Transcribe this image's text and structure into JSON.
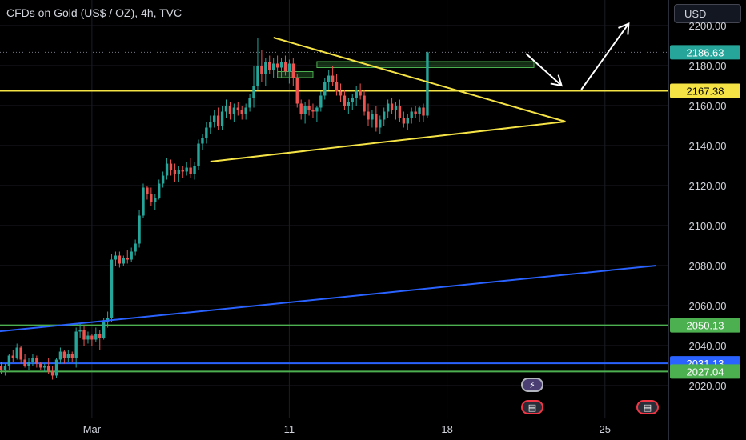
{
  "header": {
    "title": "CFDs on Gold (US$ / OZ), 4h, TVC",
    "currency": "USD"
  },
  "events": {
    "bolt_icon": "lightning-icon",
    "flag_icon": "us-flag-icon"
  },
  "colors": {
    "up": "#26a69a",
    "down": "#ef5350",
    "yellow": "#f5e346",
    "blue": "#2962ff",
    "green": "#4caf50",
    "grid": "#1b1d24",
    "axis_text": "#d1d4dc"
  },
  "chart_data": {
    "type": "candlestick",
    "title": "CFDs on Gold (US$ / OZ), 4h, TVC",
    "ylim": [
      2012,
      2212
    ],
    "y_ticks": [
      2020,
      2040,
      2060,
      2080,
      2100,
      2120,
      2140,
      2160,
      2180,
      2200
    ],
    "y_tick_labels": [
      "2020.00",
      "2040.00",
      "2060.00",
      "2080.00",
      "2100.00",
      "2120.00",
      "2140.00",
      "2160.00",
      "2180.00",
      "2200.00"
    ],
    "x_ticks": [
      {
        "bar": 23,
        "label": "Mar"
      },
      {
        "bar": 73,
        "label": "11"
      },
      {
        "bar": 113,
        "label": "18"
      },
      {
        "bar": 153,
        "label": "25"
      }
    ],
    "price_labels": [
      {
        "value": 2186.63,
        "label": "2186.63",
        "color": "#26a69a"
      },
      {
        "value": 2167.38,
        "label": "2167.38",
        "color": "#f5e346"
      },
      {
        "value": 2050.13,
        "label": "2050.13",
        "color": "#4caf50"
      },
      {
        "value": 2031.13,
        "label": "2031.13",
        "color": "#2962ff"
      },
      {
        "value": 2027.04,
        "label": "2027.04",
        "color": "#4caf50"
      }
    ],
    "horizontal_lines": [
      {
        "value": 2167.38,
        "color": "#f5e346"
      },
      {
        "value": 2050.13,
        "color": "#4caf50"
      },
      {
        "value": 2031.13,
        "color": "#2962ff"
      },
      {
        "value": 2027.04,
        "color": "#4caf50"
      }
    ],
    "trend_lines": [
      {
        "from": {
          "bar": 69,
          "price": 2194
        },
        "to": {
          "bar": 143,
          "price": 2152
        },
        "color": "#f5e346"
      },
      {
        "from": {
          "bar": 53,
          "price": 2132
        },
        "to": {
          "bar": 143,
          "price": 2152
        },
        "color": "#f5e346"
      },
      {
        "from": {
          "bar": -1,
          "price": 2047
        },
        "to": {
          "bar": 166,
          "price": 2080
        },
        "color": "#2962ff"
      }
    ],
    "boxes": [
      {
        "x0_bar": 70,
        "x1_bar": 79,
        "top": 2177,
        "bottom": 2174
      },
      {
        "x0_bar": 80,
        "x1_bar": 135,
        "top": 2182,
        "bottom": 2179
      }
    ],
    "arrows": [
      {
        "points": [
          [
            133,
            2186
          ],
          [
            142,
            2170
          ]
        ],
        "color": "#ffffff"
      },
      {
        "points": [
          [
            147,
            2168
          ],
          [
            159,
            2201
          ]
        ],
        "color": "#ffffff"
      }
    ],
    "candles": [
      [
        2030,
        2032,
        2026,
        2028
      ],
      [
        2028,
        2031,
        2025,
        2030
      ],
      [
        2030,
        2036,
        2028,
        2035
      ],
      [
        2035,
        2038,
        2032,
        2034
      ],
      [
        2034,
        2041,
        2033,
        2039
      ],
      [
        2039,
        2040,
        2031,
        2033
      ],
      [
        2033,
        2036,
        2029,
        2030
      ],
      [
        2030,
        2034,
        2028,
        2032
      ],
      [
        2032,
        2036,
        2030,
        2034
      ],
      [
        2034,
        2035,
        2029,
        2031
      ],
      [
        2031,
        2032,
        2028,
        2029
      ],
      [
        2029,
        2031,
        2027,
        2030
      ],
      [
        2030,
        2034,
        2026,
        2027
      ],
      [
        2027,
        2030,
        2023,
        2025
      ],
      [
        2025,
        2034,
        2024,
        2033
      ],
      [
        2033,
        2039,
        2031,
        2037
      ],
      [
        2037,
        2038,
        2031,
        2034
      ],
      [
        2034,
        2038,
        2032,
        2036
      ],
      [
        2036,
        2037,
        2032,
        2034
      ],
      [
        2034,
        2049,
        2029,
        2047
      ],
      [
        2047,
        2051,
        2044,
        2048
      ],
      [
        2048,
        2050,
        2040,
        2043
      ],
      [
        2043,
        2047,
        2041,
        2045
      ],
      [
        2045,
        2046,
        2040,
        2043
      ],
      [
        2043,
        2049,
        2042,
        2046
      ],
      [
        2046,
        2048,
        2038,
        2044
      ],
      [
        2044,
        2054,
        2043,
        2052
      ],
      [
        2052,
        2057,
        2049,
        2054
      ],
      [
        2054,
        2086,
        2052,
        2083
      ],
      [
        2083,
        2087,
        2080,
        2085
      ],
      [
        2085,
        2087,
        2079,
        2081
      ],
      [
        2081,
        2085,
        2080,
        2084
      ],
      [
        2084,
        2088,
        2081,
        2083
      ],
      [
        2083,
        2089,
        2082,
        2087
      ],
      [
        2087,
        2093,
        2085,
        2091
      ],
      [
        2091,
        2108,
        2089,
        2105
      ],
      [
        2105,
        2121,
        2104,
        2119
      ],
      [
        2119,
        2120,
        2113,
        2116
      ],
      [
        2116,
        2119,
        2110,
        2112
      ],
      [
        2112,
        2116,
        2108,
        2114
      ],
      [
        2114,
        2123,
        2113,
        2121
      ],
      [
        2121,
        2127,
        2119,
        2125
      ],
      [
        2125,
        2134,
        2123,
        2131
      ],
      [
        2131,
        2133,
        2125,
        2128
      ],
      [
        2128,
        2131,
        2122,
        2126
      ],
      [
        2126,
        2130,
        2122,
        2128
      ],
      [
        2128,
        2130,
        2124,
        2127
      ],
      [
        2127,
        2132,
        2125,
        2129
      ],
      [
        2129,
        2134,
        2124,
        2126
      ],
      [
        2126,
        2132,
        2123,
        2130
      ],
      [
        2130,
        2143,
        2128,
        2141
      ],
      [
        2141,
        2146,
        2138,
        2144
      ],
      [
        2144,
        2152,
        2141,
        2149
      ],
      [
        2149,
        2155,
        2146,
        2152
      ],
      [
        2152,
        2158,
        2149,
        2155
      ],
      [
        2155,
        2159,
        2148,
        2150
      ],
      [
        2150,
        2160,
        2148,
        2157
      ],
      [
        2157,
        2163,
        2154,
        2160
      ],
      [
        2160,
        2162,
        2153,
        2156
      ],
      [
        2156,
        2161,
        2152,
        2159
      ],
      [
        2159,
        2162,
        2155,
        2158
      ],
      [
        2158,
        2160,
        2153,
        2156
      ],
      [
        2156,
        2161,
        2153,
        2159
      ],
      [
        2159,
        2166,
        2157,
        2164
      ],
      [
        2164,
        2180,
        2159,
        2170
      ],
      [
        2170,
        2194,
        2168,
        2180
      ],
      [
        2180,
        2188,
        2172,
        2176
      ],
      [
        2176,
        2184,
        2170,
        2182
      ],
      [
        2182,
        2185,
        2176,
        2178
      ],
      [
        2178,
        2184,
        2174,
        2181
      ],
      [
        2181,
        2185,
        2176,
        2179
      ],
      [
        2179,
        2184,
        2174,
        2182
      ],
      [
        2182,
        2185,
        2175,
        2177
      ],
      [
        2177,
        2183,
        2171,
        2181
      ],
      [
        2181,
        2184,
        2170,
        2174
      ],
      [
        2174,
        2176,
        2159,
        2161
      ],
      [
        2161,
        2163,
        2153,
        2156
      ],
      [
        2156,
        2162,
        2151,
        2160
      ],
      [
        2160,
        2163,
        2155,
        2158
      ],
      [
        2158,
        2161,
        2154,
        2157
      ],
      [
        2157,
        2160,
        2152,
        2159
      ],
      [
        2159,
        2167,
        2157,
        2165
      ],
      [
        2165,
        2174,
        2163,
        2172
      ],
      [
        2172,
        2178,
        2168,
        2175
      ],
      [
        2175,
        2180,
        2170,
        2172
      ],
      [
        2172,
        2176,
        2165,
        2167
      ],
      [
        2167,
        2171,
        2162,
        2165
      ],
      [
        2165,
        2168,
        2158,
        2160
      ],
      [
        2160,
        2164,
        2156,
        2162
      ],
      [
        2162,
        2166,
        2158,
        2164
      ],
      [
        2164,
        2170,
        2160,
        2168
      ],
      [
        2168,
        2171,
        2163,
        2165
      ],
      [
        2165,
        2168,
        2155,
        2157
      ],
      [
        2157,
        2161,
        2150,
        2153
      ],
      [
        2153,
        2158,
        2149,
        2156
      ],
      [
        2156,
        2160,
        2147,
        2149
      ],
      [
        2149,
        2155,
        2146,
        2153
      ],
      [
        2153,
        2159,
        2150,
        2157
      ],
      [
        2157,
        2163,
        2154,
        2161
      ],
      [
        2161,
        2164,
        2156,
        2158
      ],
      [
        2158,
        2162,
        2153,
        2160
      ],
      [
        2160,
        2163,
        2152,
        2154
      ],
      [
        2154,
        2157,
        2149,
        2151
      ],
      [
        2151,
        2156,
        2148,
        2154
      ],
      [
        2154,
        2159,
        2151,
        2157
      ],
      [
        2157,
        2160,
        2154,
        2156
      ],
      [
        2156,
        2160,
        2152,
        2159
      ],
      [
        2159,
        2161,
        2152,
        2155
      ],
      [
        2155,
        2187,
        2154,
        2186.63
      ]
    ]
  }
}
